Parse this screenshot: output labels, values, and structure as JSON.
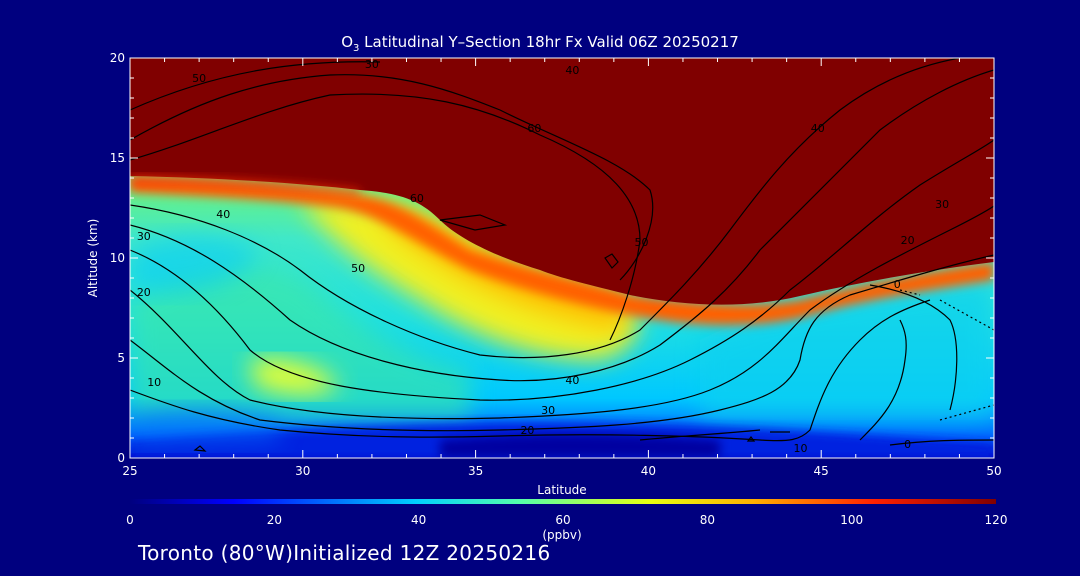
{
  "chart_data": {
    "type": "heatmap",
    "title_prefix": "O",
    "title_subscript": "3",
    "title_rest": " Latitudinal Y–Section 18hr  Fx Valid 06Z 20250217",
    "xlabel": "Latitude",
    "ylabel": "Altitude (km)",
    "xlim": [
      25,
      50
    ],
    "ylim": [
      0,
      20
    ],
    "x_ticks": [
      "25",
      "30",
      "35",
      "40",
      "45",
      "50"
    ],
    "y_ticks": [
      "0",
      "5",
      "10",
      "15",
      "20"
    ],
    "colorbar": {
      "range": [
        0,
        120
      ],
      "ticks": [
        "0",
        "20",
        "40",
        "60",
        "80",
        "100",
        "120"
      ],
      "unit_label": "(ppbv)"
    },
    "contour_labels": [
      {
        "text": "50",
        "lat": 27.0,
        "alt": 19.0
      },
      {
        "text": "30",
        "lat": 32.0,
        "alt": 19.7
      },
      {
        "text": "40",
        "lat": 37.8,
        "alt": 19.4
      },
      {
        "text": "60",
        "lat": 36.7,
        "alt": 16.5
      },
      {
        "text": "40",
        "lat": 44.9,
        "alt": 16.5
      },
      {
        "text": "30",
        "lat": 48.5,
        "alt": 12.7
      },
      {
        "text": "20",
        "lat": 47.5,
        "alt": 10.9
      },
      {
        "text": "0",
        "lat": 47.2,
        "alt": 8.7
      },
      {
        "text": "60",
        "lat": 33.3,
        "alt": 13.0
      },
      {
        "text": "50",
        "lat": 39.8,
        "alt": 10.8
      },
      {
        "text": "40",
        "lat": 27.7,
        "alt": 12.2
      },
      {
        "text": "30",
        "lat": 25.4,
        "alt": 11.1
      },
      {
        "text": "50",
        "lat": 31.6,
        "alt": 9.5
      },
      {
        "text": "20",
        "lat": 25.4,
        "alt": 8.3
      },
      {
        "text": "10",
        "lat": 25.7,
        "alt": 3.8
      },
      {
        "text": "40",
        "lat": 37.8,
        "alt": 3.9
      },
      {
        "text": "30",
        "lat": 37.1,
        "alt": 2.4
      },
      {
        "text": "20",
        "lat": 36.5,
        "alt": 1.4
      },
      {
        "text": "10",
        "lat": 44.4,
        "alt": 0.5
      },
      {
        "text": "0",
        "lat": 47.5,
        "alt": 0.7
      }
    ]
  },
  "footer": "Toronto (80°W)Initialized 12Z 20250216"
}
